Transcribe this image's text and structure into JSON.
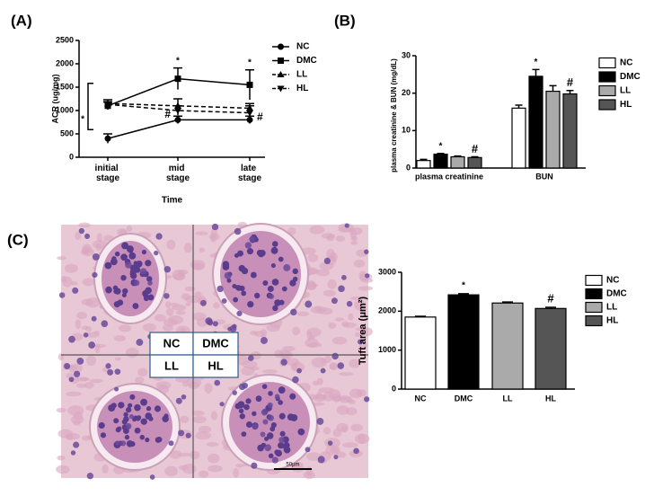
{
  "chart_data": [
    {
      "type": "line",
      "panel_label": "(A)",
      "x_label": "Time",
      "y_label": "ACR (ug/mg)",
      "categories": [
        "initial stage",
        "mid stage",
        "late stage"
      ],
      "ylim": [
        0,
        2500
      ],
      "yticks": [
        0,
        500,
        1000,
        1500,
        2000,
        2500
      ],
      "series": [
        {
          "name": "NC",
          "color": "#000000",
          "marker": "circle",
          "dashed": false,
          "values": [
            400,
            800,
            800
          ],
          "errors": [
            100,
            80,
            80
          ],
          "annotations": [
            "*",
            null,
            null
          ]
        },
        {
          "name": "DMC",
          "color": "#000000",
          "marker": "square",
          "dashed": false,
          "values": [
            1100,
            1680,
            1550
          ],
          "errors": [
            80,
            230,
            320
          ],
          "annotations": [
            null,
            "*",
            "*"
          ]
        },
        {
          "name": "LL",
          "color": "#000000",
          "marker": "triangle-up",
          "dashed": true,
          "values": [
            1150,
            1100,
            1050
          ],
          "errors": [
            80,
            150,
            100
          ],
          "annotations": [
            null,
            null,
            null
          ]
        },
        {
          "name": "HL",
          "color": "#000000",
          "marker": "triangle-down",
          "dashed": true,
          "values": [
            1130,
            1000,
            950
          ],
          "errors": [
            60,
            100,
            150
          ],
          "annotations": [
            null,
            "#",
            "#"
          ]
        }
      ]
    },
    {
      "type": "bar",
      "panel_label": "(B)",
      "y_label": "plasma creatinine & BUN (mg/dL)",
      "categories": [
        "plasma creatinine",
        "BUN"
      ],
      "ylim": [
        0,
        30
      ],
      "yticks": [
        0,
        10,
        20,
        30
      ],
      "series": [
        {
          "name": "NC",
          "color": "#ffffff",
          "values": [
            2,
            16
          ],
          "errors": [
            0.3,
            0.8
          ],
          "annotations": [
            null,
            null
          ]
        },
        {
          "name": "DMC",
          "color": "#000000",
          "values": [
            3.7,
            24.5
          ],
          "errors": [
            0.2,
            1.8
          ],
          "annotations": [
            "*",
            "*"
          ]
        },
        {
          "name": "LL",
          "color": "#aaaaaa",
          "values": [
            3,
            20.5
          ],
          "errors": [
            0.2,
            1.5
          ],
          "annotations": [
            null,
            null
          ]
        },
        {
          "name": "HL",
          "color": "#555555",
          "values": [
            2.8,
            19.8
          ],
          "errors": [
            0.2,
            0.9
          ],
          "annotations": [
            "#",
            "#"
          ]
        }
      ]
    },
    {
      "type": "image",
      "panel_label": "(C)",
      "image_labels": [
        "NC",
        "DMC",
        "LL",
        "HL"
      ],
      "scale_bar": "50μm"
    },
    {
      "type": "bar-single",
      "y_label": "Tuft area (μm²)",
      "categories": [
        "NC",
        "DMC",
        "LL",
        "HL"
      ],
      "colors": [
        "#ffffff",
        "#000000",
        "#aaaaaa",
        "#555555"
      ],
      "values": [
        1850,
        2420,
        2210,
        2070
      ],
      "errors": [
        20,
        30,
        25,
        30
      ],
      "annotations": [
        null,
        "*",
        null,
        "#"
      ],
      "ylim": [
        0,
        3000
      ],
      "yticks": [
        0,
        1000,
        2000,
        3000
      ]
    }
  ]
}
